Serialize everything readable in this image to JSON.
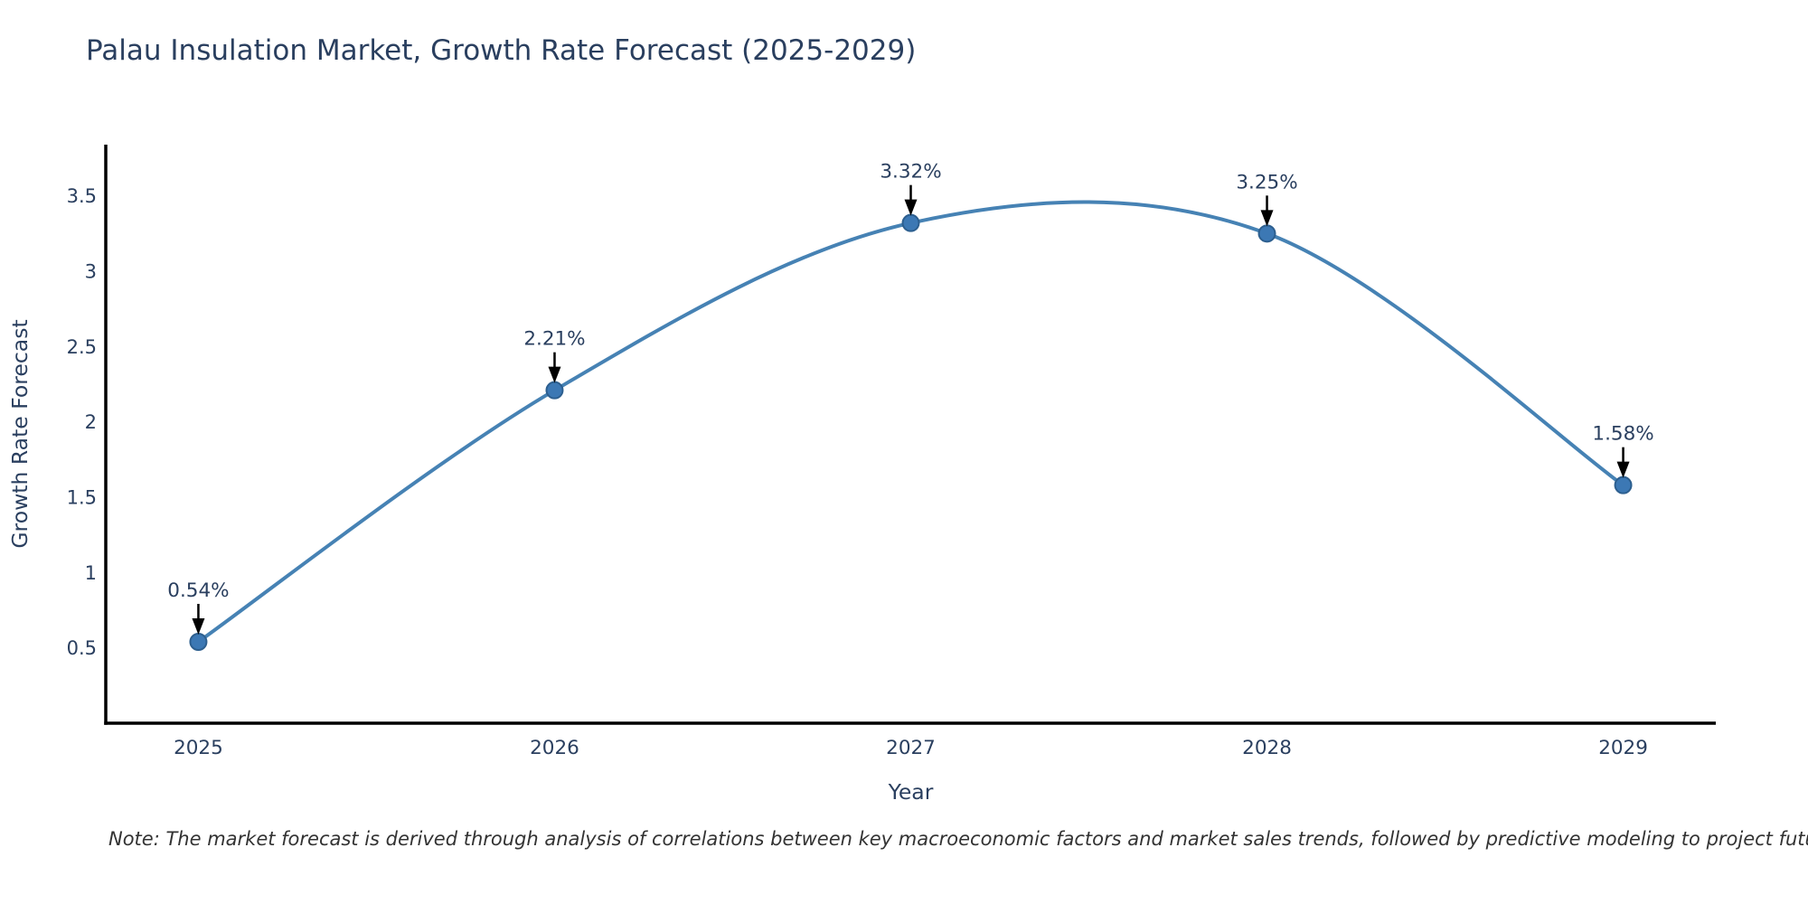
{
  "chart_data": {
    "type": "line",
    "title": "Palau Insulation Market, Growth Rate Forecast (2025-2029)",
    "xlabel": "Year",
    "ylabel": "Growth Rate Forecast",
    "x": [
      2025,
      2026,
      2027,
      2028,
      2029
    ],
    "y": [
      0.54,
      2.21,
      3.32,
      3.25,
      1.58
    ],
    "point_labels": [
      "0.54%",
      "2.21%",
      "3.32%",
      "3.25%",
      "1.58%"
    ],
    "x_tick_labels": [
      "2025",
      "2026",
      "2027",
      "2028",
      "2029"
    ],
    "y_ticks": [
      0.5,
      1,
      1.5,
      2,
      2.5,
      3,
      3.5
    ],
    "y_tick_labels": [
      "0.5",
      "1",
      "1.5",
      "2",
      "2.5",
      "3",
      "3.5"
    ],
    "xlim": [
      2024.74,
      2029.26
    ],
    "ylim": [
      0,
      3.84
    ],
    "grid": false,
    "legend": "none",
    "line_shape": "spline",
    "colors": {
      "line": "#4682b4",
      "marker_fill": "#3c78b4",
      "marker_edge": "#2d5f8f",
      "axis_line": "#000000",
      "text": "#2a3f5f",
      "annotation_arrow": "#000000",
      "background": "#ffffff"
    }
  },
  "note": "Note: The market forecast is derived through analysis of correlations between key macroeconomic factors and market sales trends, followed by predictive modeling to project future sales"
}
